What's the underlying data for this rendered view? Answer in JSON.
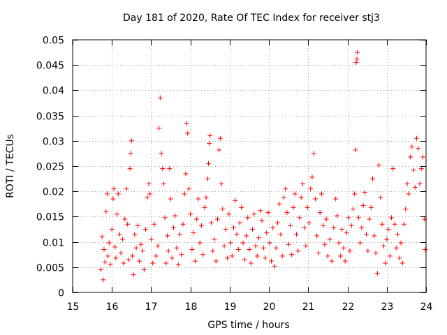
{
  "chart_data": {
    "type": "scatter",
    "title": "Day 181 of 2020, Rate Of TEC Index for receiver stj3",
    "xlabel": "GPS time / hours",
    "ylabel": "ROTI / TECUs",
    "xlim": [
      15,
      24
    ],
    "ylim": [
      0,
      0.05
    ],
    "x_ticks": [
      15,
      16,
      17,
      18,
      19,
      20,
      21,
      22,
      23,
      24
    ],
    "y_ticks": [
      0,
      0.005,
      0.01,
      0.015,
      0.02,
      0.025,
      0.03,
      0.035,
      0.04,
      0.045,
      0.05
    ],
    "x_tick_labels": [
      "15",
      "16",
      "17",
      "18",
      "19",
      "20",
      "21",
      "22",
      "23",
      "24"
    ],
    "y_tick_labels": [
      "0",
      "0.005",
      "0.01",
      "0.015",
      "0.02",
      "0.025",
      "0.03",
      "0.035",
      "0.04",
      "0.045",
      "0.05"
    ],
    "grid": true,
    "marker": "plus",
    "series": [
      {
        "name": "ROTI stj3",
        "color": "#ff0000",
        "points": [
          [
            15.72,
            0.0045
          ],
          [
            15.75,
            0.011
          ],
          [
            15.78,
            0.0025
          ],
          [
            15.8,
            0.0085
          ],
          [
            15.82,
            0.006
          ],
          [
            15.85,
            0.016
          ],
          [
            15.88,
            0.0195
          ],
          [
            15.9,
            0.0072
          ],
          [
            15.93,
            0.0098
          ],
          [
            15.96,
            0.0055
          ],
          [
            16.0,
            0.0125
          ],
          [
            16.03,
            0.0185
          ],
          [
            16.05,
            0.0205
          ],
          [
            16.08,
            0.009
          ],
          [
            16.1,
            0.0068
          ],
          [
            16.13,
            0.0155
          ],
          [
            16.16,
            0.0195
          ],
          [
            16.2,
            0.0115
          ],
          [
            16.23,
            0.0078
          ],
          [
            16.27,
            0.0105
          ],
          [
            16.3,
            0.0058
          ],
          [
            16.33,
            0.0145
          ],
          [
            16.37,
            0.0205
          ],
          [
            16.4,
            0.0135
          ],
          [
            16.43,
            0.0065
          ],
          [
            16.46,
            0.0245
          ],
          [
            16.48,
            0.0275
          ],
          [
            16.5,
            0.03
          ],
          [
            16.52,
            0.0072
          ],
          [
            16.55,
            0.0035
          ],
          [
            16.58,
            0.0115
          ],
          [
            16.62,
            0.0088
          ],
          [
            16.66,
            0.0132
          ],
          [
            16.7,
            0.0062
          ],
          [
            16.74,
            0.0095
          ],
          [
            16.78,
            0.0082
          ],
          [
            16.82,
            0.0045
          ],
          [
            16.86,
            0.0125
          ],
          [
            16.9,
            0.0188
          ],
          [
            16.94,
            0.0215
          ],
          [
            16.97,
            0.0195
          ],
          [
            17.0,
            0.0105
          ],
          [
            17.04,
            0.0058
          ],
          [
            17.08,
            0.0135
          ],
          [
            17.12,
            0.0072
          ],
          [
            17.17,
            0.0092
          ],
          [
            17.2,
            0.0325
          ],
          [
            17.23,
            0.0385
          ],
          [
            17.26,
            0.0275
          ],
          [
            17.29,
            0.0245
          ],
          [
            17.32,
            0.0215
          ],
          [
            17.35,
            0.0148
          ],
          [
            17.38,
            0.0058
          ],
          [
            17.41,
            0.0112
          ],
          [
            17.44,
            0.0082
          ],
          [
            17.47,
            0.0245
          ],
          [
            17.5,
            0.0185
          ],
          [
            17.53,
            0.0068
          ],
          [
            17.57,
            0.0128
          ],
          [
            17.61,
            0.0152
          ],
          [
            17.65,
            0.0088
          ],
          [
            17.69,
            0.0055
          ],
          [
            17.73,
            0.0115
          ],
          [
            17.77,
            0.0075
          ],
          [
            17.81,
            0.0135
          ],
          [
            17.85,
            0.0195
          ],
          [
            17.88,
            0.0235
          ],
          [
            17.9,
            0.0335
          ],
          [
            17.93,
            0.0315
          ],
          [
            17.96,
            0.0205
          ],
          [
            18.0,
            0.0155
          ],
          [
            18.04,
            0.0085
          ],
          [
            18.08,
            0.0118
          ],
          [
            18.12,
            0.0062
          ],
          [
            18.16,
            0.0145
          ],
          [
            18.2,
            0.0185
          ],
          [
            18.24,
            0.0098
          ],
          [
            18.28,
            0.0132
          ],
          [
            18.32,
            0.0075
          ],
          [
            18.36,
            0.0168
          ],
          [
            18.4,
            0.0188
          ],
          [
            18.44,
            0.0225
          ],
          [
            18.46,
            0.0255
          ],
          [
            18.48,
            0.0295
          ],
          [
            18.5,
            0.031
          ],
          [
            18.53,
            0.0138
          ],
          [
            18.57,
            0.0082
          ],
          [
            18.61,
            0.0105
          ],
          [
            18.65,
            0.0062
          ],
          [
            18.69,
            0.0145
          ],
          [
            18.73,
            0.0282
          ],
          [
            18.76,
            0.0305
          ],
          [
            18.79,
            0.0215
          ],
          [
            18.82,
            0.0165
          ],
          [
            18.86,
            0.0092
          ],
          [
            18.9,
            0.0125
          ],
          [
            18.94,
            0.0068
          ],
          [
            18.98,
            0.0155
          ],
          [
            19.02,
            0.0098
          ],
          [
            19.06,
            0.0072
          ],
          [
            19.1,
            0.0128
          ],
          [
            19.14,
            0.0182
          ],
          [
            19.18,
            0.0115
          ],
          [
            19.22,
            0.0085
          ],
          [
            19.26,
            0.0138
          ],
          [
            19.3,
            0.0168
          ],
          [
            19.34,
            0.0098
          ],
          [
            19.38,
            0.0065
          ],
          [
            19.42,
            0.0112
          ],
          [
            19.46,
            0.0148
          ],
          [
            19.5,
            0.0085
          ],
          [
            19.54,
            0.0058
          ],
          [
            19.58,
            0.0125
          ],
          [
            19.62,
            0.0155
          ],
          [
            19.66,
            0.0092
          ],
          [
            19.7,
            0.0072
          ],
          [
            19.74,
            0.0108
          ],
          [
            19.78,
            0.0162
          ],
          [
            19.82,
            0.0142
          ],
          [
            19.86,
            0.0088
          ],
          [
            19.9,
            0.0068
          ],
          [
            19.94,
            0.0118
          ],
          [
            19.98,
            0.0158
          ],
          [
            20.02,
            0.0098
          ],
          [
            20.06,
            0.0062
          ],
          [
            20.1,
            0.0128
          ],
          [
            20.14,
            0.0052
          ],
          [
            20.18,
            0.0088
          ],
          [
            20.22,
            0.0138
          ],
          [
            20.26,
            0.0175
          ],
          [
            20.3,
            0.0115
          ],
          [
            20.34,
            0.0072
          ],
          [
            20.38,
            0.0188
          ],
          [
            20.42,
            0.0205
          ],
          [
            20.46,
            0.0158
          ],
          [
            20.5,
            0.0095
          ],
          [
            20.54,
            0.0132
          ],
          [
            20.58,
            0.0075
          ],
          [
            20.62,
            0.0168
          ],
          [
            20.66,
            0.0195
          ],
          [
            20.7,
            0.0115
          ],
          [
            20.74,
            0.0082
          ],
          [
            20.78,
            0.0148
          ],
          [
            20.82,
            0.0188
          ],
          [
            20.86,
            0.0215
          ],
          [
            20.9,
            0.0128
          ],
          [
            20.94,
            0.0092
          ],
          [
            20.98,
            0.0168
          ],
          [
            21.02,
            0.0138
          ],
          [
            21.06,
            0.0205
          ],
          [
            21.1,
            0.0228
          ],
          [
            21.14,
            0.0275
          ],
          [
            21.18,
            0.0185
          ],
          [
            21.22,
            0.0112
          ],
          [
            21.26,
            0.0078
          ],
          [
            21.3,
            0.0158
          ],
          [
            21.34,
            0.0195
          ],
          [
            21.38,
            0.0132
          ],
          [
            21.42,
            0.0095
          ],
          [
            21.46,
            0.0145
          ],
          [
            21.5,
            0.0072
          ],
          [
            21.55,
            0.0105
          ],
          [
            21.6,
            0.0062
          ],
          [
            21.65,
            0.0128
          ],
          [
            21.7,
            0.0185
          ],
          [
            21.74,
            0.0152
          ],
          [
            21.78,
            0.0098
          ],
          [
            21.82,
            0.0072
          ],
          [
            21.86,
            0.0125
          ],
          [
            21.9,
            0.0088
          ],
          [
            21.94,
            0.0062
          ],
          [
            21.98,
            0.0118
          ],
          [
            22.02,
            0.0148
          ],
          [
            22.06,
            0.0082
          ],
          [
            22.1,
            0.0132
          ],
          [
            22.14,
            0.0165
          ],
          [
            22.18,
            0.0195
          ],
          [
            22.2,
            0.0282
          ],
          [
            22.22,
            0.0455
          ],
          [
            22.24,
            0.0462
          ],
          [
            22.25,
            0.0475
          ],
          [
            22.28,
            0.0148
          ],
          [
            22.32,
            0.0098
          ],
          [
            22.36,
            0.0128
          ],
          [
            22.4,
            0.0172
          ],
          [
            22.44,
            0.0198
          ],
          [
            22.48,
            0.0115
          ],
          [
            22.52,
            0.0082
          ],
          [
            22.56,
            0.0145
          ],
          [
            22.6,
            0.0168
          ],
          [
            22.64,
            0.0225
          ],
          [
            22.68,
            0.0112
          ],
          [
            22.72,
            0.0078
          ],
          [
            22.76,
            0.0038
          ],
          [
            22.8,
            0.0252
          ],
          [
            22.84,
            0.0188
          ],
          [
            22.88,
            0.0135
          ],
          [
            22.92,
            0.0092
          ],
          [
            22.96,
            0.0058
          ],
          [
            23.0,
            0.0105
          ],
          [
            23.04,
            0.0125
          ],
          [
            23.08,
            0.0072
          ],
          [
            23.12,
            0.0148
          ],
          [
            23.16,
            0.0245
          ],
          [
            23.2,
            0.0135
          ],
          [
            23.24,
            0.0088
          ],
          [
            23.28,
            0.0115
          ],
          [
            23.32,
            0.0068
          ],
          [
            23.36,
            0.0098
          ],
          [
            23.4,
            0.0058
          ],
          [
            23.44,
            0.0135
          ],
          [
            23.48,
            0.0165
          ],
          [
            23.52,
            0.0215
          ],
          [
            23.56,
            0.0195
          ],
          [
            23.6,
            0.0268
          ],
          [
            23.64,
            0.0288
          ],
          [
            23.68,
            0.0242
          ],
          [
            23.72,
            0.0208
          ],
          [
            23.76,
            0.0305
          ],
          [
            23.8,
            0.0285
          ],
          [
            23.84,
            0.0215
          ],
          [
            23.88,
            0.0245
          ],
          [
            23.92,
            0.0268
          ],
          [
            23.96,
            0.0145
          ],
          [
            23.98,
            0.0085
          ]
        ]
      }
    ]
  }
}
